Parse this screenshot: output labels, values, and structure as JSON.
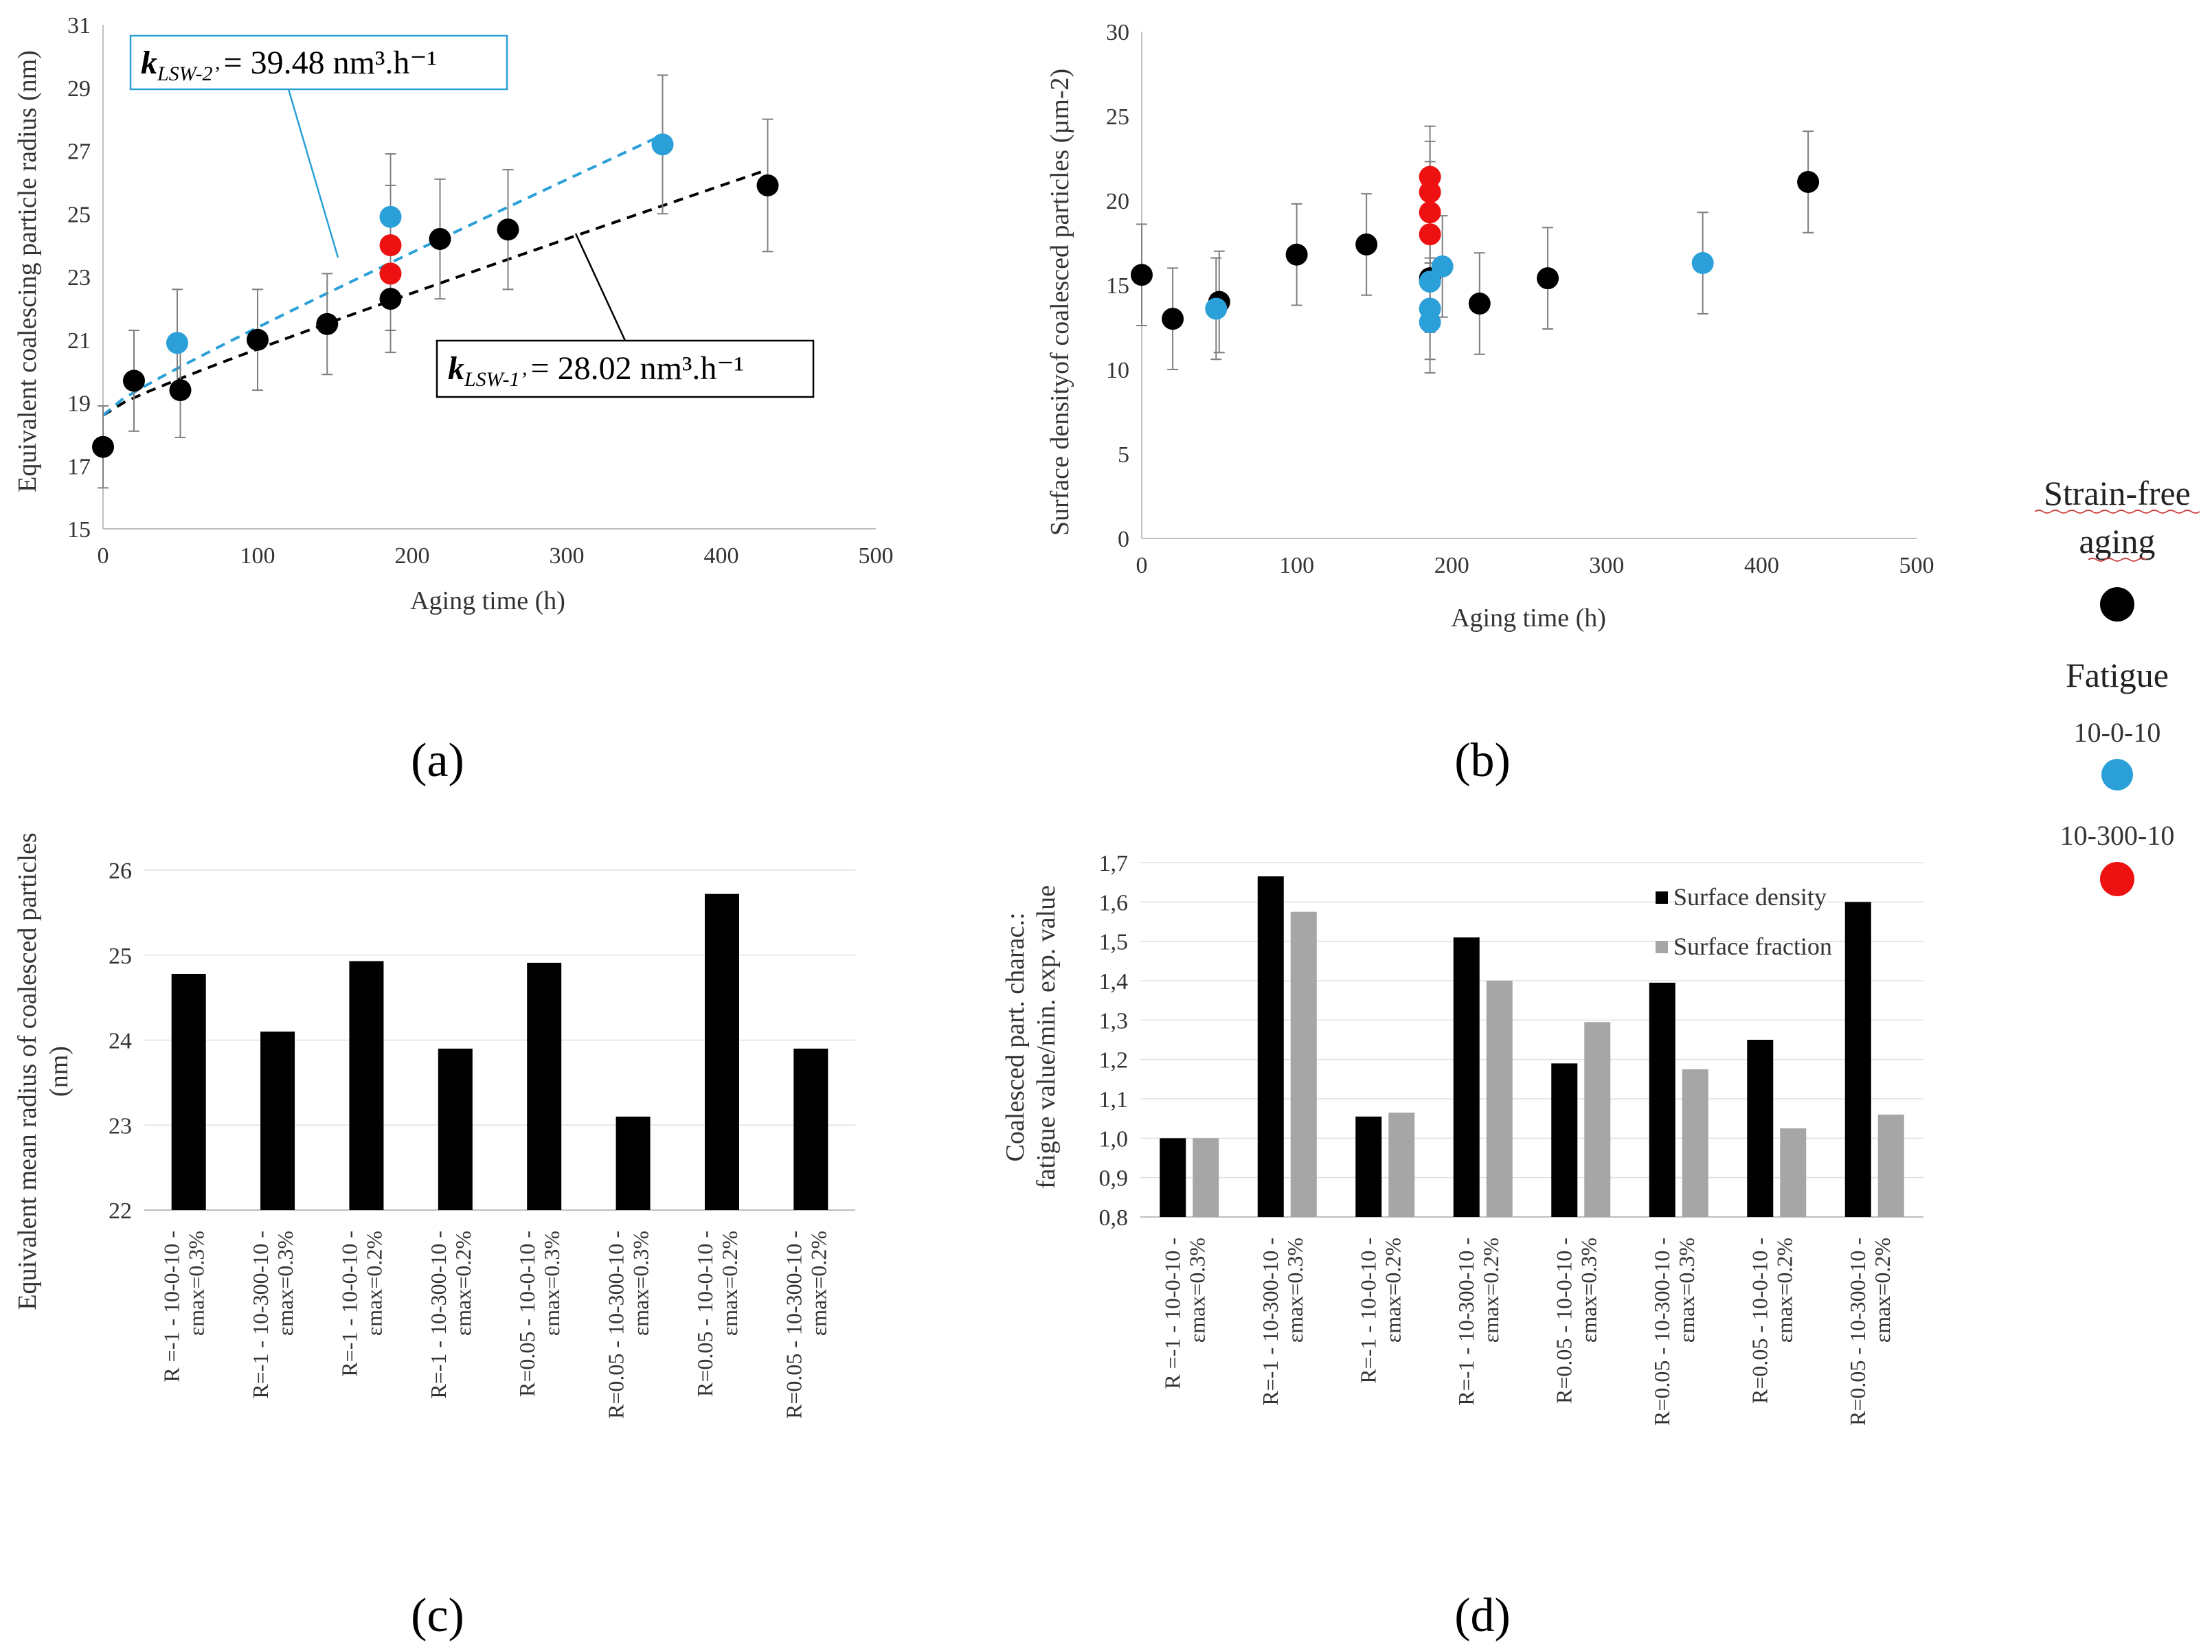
{
  "panel_labels": [
    "(a)",
    "(b)",
    "(c)",
    "(d)"
  ],
  "legend": {
    "strain_free_title": "Strain-free",
    "strain_free_title_2": "aging",
    "strain_free_color": "#000000",
    "fatigue_title": "Fatigue",
    "series_a_label": "10-0-10",
    "series_a_color": "#2a9fd8",
    "series_b_label": "10-300-10",
    "series_b_color": "#ee1111"
  },
  "chart_data": [
    {
      "id": "a",
      "type": "scatter",
      "xlabel": "Aging time (h)",
      "ylabel": "Equivalent coalescing particle radius (nm)",
      "xlim": [
        0,
        500
      ],
      "ylim": [
        15,
        31
      ],
      "xticks": [
        "0",
        "100",
        "200",
        "300",
        "400",
        "500"
      ],
      "yticks": [
        "15",
        "17",
        "19",
        "21",
        "23",
        "25",
        "27",
        "29",
        "31"
      ],
      "annotations": {
        "k2_prefix": "k",
        "k2_sub": "LSW-2’",
        "k2_text": "= 39.48 nm³.h⁻¹",
        "k1_prefix": "k",
        "k1_sub": "LSW-1’",
        "k1_text": "= 28.02 nm³.h⁻¹"
      },
      "series": [
        {
          "name": "Strain-free aging",
          "color": "#000000",
          "points": [
            {
              "x": 0,
              "y": 17.6,
              "err": 1.3
            },
            {
              "x": 20,
              "y": 19.7,
              "err": 1.6
            },
            {
              "x": 50,
              "y": 19.4,
              "err": 1.5
            },
            {
              "x": 100,
              "y": 21.0,
              "err": 1.6
            },
            {
              "x": 145,
              "y": 21.5,
              "err": 1.6
            },
            {
              "x": 186,
              "y": 22.3,
              "err": 1.7
            },
            {
              "x": 218,
              "y": 24.2,
              "err": 1.9
            },
            {
              "x": 262,
              "y": 24.5,
              "err": 1.9
            },
            {
              "x": 430,
              "y": 25.9,
              "err": 2.1
            }
          ]
        },
        {
          "name": "10-0-10",
          "color": "#2a9fd8",
          "points": [
            {
              "x": 48,
              "y": 20.9,
              "err": 1.7
            },
            {
              "x": 186,
              "y": 24.9,
              "err": 2.0
            },
            {
              "x": 362,
              "y": 27.2,
              "err": 2.2
            }
          ]
        },
        {
          "name": "10-300-10",
          "color": "#ee1111",
          "points": [
            {
              "x": 186,
              "y": 24.0,
              "err": 1.9
            },
            {
              "x": 186,
              "y": 23.1,
              "err": 1.8
            }
          ]
        }
      ],
      "fits": [
        {
          "name": "LSW-1",
          "color": "#000000",
          "x": [
            0,
            430
          ],
          "y0": 18.6,
          "y1": 26.4
        },
        {
          "name": "LSW-2",
          "color": "#2a9fd8",
          "x": [
            0,
            362
          ],
          "y0": 18.6,
          "y1": 27.5
        }
      ]
    },
    {
      "id": "b",
      "type": "scatter",
      "xlabel": "Aging time (h)",
      "ylabel": "Surface densityof coalesced particles (µm-2)",
      "xlim": [
        0,
        500
      ],
      "ylim": [
        0,
        30
      ],
      "xticks": [
        "0",
        "100",
        "200",
        "300",
        "400",
        "500"
      ],
      "yticks": [
        "0",
        "5",
        "10",
        "15",
        "20",
        "25",
        "30"
      ],
      "series": [
        {
          "name": "Strain-free aging",
          "color": "#000000",
          "points": [
            {
              "x": 0,
              "y": 15.6,
              "err": 3.0
            },
            {
              "x": 20,
              "y": 13.0,
              "err": 3.0
            },
            {
              "x": 50,
              "y": 14.0,
              "err": 3.0
            },
            {
              "x": 100,
              "y": 16.8,
              "err": 3.0
            },
            {
              "x": 145,
              "y": 17.4,
              "err": 3.0
            },
            {
              "x": 186,
              "y": 15.4,
              "err": 3.0
            },
            {
              "x": 218,
              "y": 13.9,
              "err": 3.0
            },
            {
              "x": 262,
              "y": 15.4,
              "err": 3.0
            },
            {
              "x": 430,
              "y": 21.1,
              "err": 3.0
            }
          ]
        },
        {
          "name": "10-0-10",
          "color": "#2a9fd8",
          "points": [
            {
              "x": 48,
              "y": 13.6,
              "err": 3.0
            },
            {
              "x": 186,
              "y": 15.2,
              "err": 3.0
            },
            {
              "x": 186,
              "y": 13.6,
              "err": 3.0
            },
            {
              "x": 186,
              "y": 12.8,
              "err": 3.0
            },
            {
              "x": 194,
              "y": 16.1,
              "err": 3.0
            },
            {
              "x": 362,
              "y": 16.3,
              "err": 3.0
            }
          ]
        },
        {
          "name": "10-300-10",
          "color": "#ee1111",
          "points": [
            {
              "x": 186,
              "y": 21.4,
              "err": 3.0
            },
            {
              "x": 186,
              "y": 20.5,
              "err": 3.0
            },
            {
              "x": 186,
              "y": 19.3,
              "err": 3.0
            },
            {
              "x": 186,
              "y": 18.0,
              "err": 3.0
            }
          ]
        }
      ]
    },
    {
      "id": "c",
      "type": "bar",
      "ylabel_line1": "Equivalent mean radius of coalesced particles",
      "ylabel_line2": "(nm)",
      "ylim": [
        22,
        26
      ],
      "yticks": [
        "22",
        "23",
        "24",
        "25",
        "26"
      ],
      "categories": [
        "R =-1 - 10-0-10 -|εmax=0.3%",
        "R=-1 - 10-300-10 -|εmax=0.3%",
        "R=-1 - 10-0-10 -|εmax=0.2%",
        "R=-1 - 10-300-10 -|εmax=0.2%",
        "R=0.05 - 10-0-10 -|εmax=0.3%",
        "R=0.05 - 10-300-10 -|εmax=0.3%",
        "R=0.05 - 10-0-10 -|εmax=0.2%",
        "R=0.05 - 10-300-10 -|εmax=0.2%"
      ],
      "values": [
        24.78,
        24.1,
        24.93,
        23.9,
        24.91,
        23.1,
        25.72,
        23.9
      ],
      "color": "#000000"
    },
    {
      "id": "d",
      "type": "bar",
      "ylabel_line1": "Coalesced part. charac.:",
      "ylabel_line2": "fatigue value/min. exp. value",
      "ylim": [
        0.8,
        1.7
      ],
      "yticks": [
        "0,8",
        "0,9",
        "1,0",
        "1,1",
        "1,2",
        "1,3",
        "1,4",
        "1,5",
        "1,6",
        "1,7"
      ],
      "categories": [
        "R =-1 - 10-0-10 -|εmax=0.3%",
        "R=-1 - 10-300-10 -|εmax=0.3%",
        "R=-1 - 10-0-10 -|εmax=0.2%",
        "R=-1 - 10-300-10 -|εmax=0.2%",
        "R=0.05 - 10-0-10 -|εmax=0.3%",
        "R=0.05 - 10-300-10 -|εmax=0.3%",
        "R=0.05 - 10-0-10 -|εmax=0.2%",
        "R=0.05 - 10-300-10 -|εmax=0.2%"
      ],
      "series": [
        {
          "name": "Surface density",
          "color": "#000000",
          "values": [
            1.0,
            1.665,
            1.055,
            1.51,
            1.19,
            1.395,
            1.25,
            1.6
          ]
        },
        {
          "name": "Surface fraction",
          "color": "#a6a6a6",
          "values": [
            1.0,
            1.575,
            1.065,
            1.4,
            1.295,
            1.175,
            1.025,
            1.06
          ]
        }
      ]
    }
  ]
}
